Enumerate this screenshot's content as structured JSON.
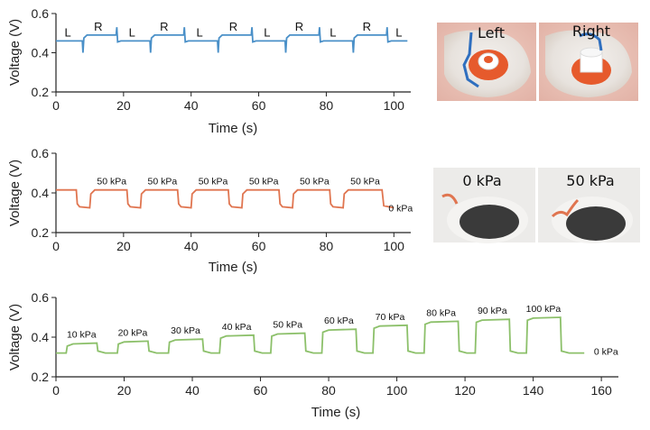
{
  "chart_data": [
    {
      "type": "line",
      "title": "",
      "color": "#4a90c8",
      "xlabel": "Time (s)",
      "ylabel": "Voltage (V)",
      "xlim": [
        0,
        105
      ],
      "ylim": [
        0.2,
        0.6
      ],
      "xticks": [
        0,
        20,
        40,
        60,
        80,
        100
      ],
      "yticks": [
        0.2,
        0.4,
        0.6
      ],
      "pattern": {
        "period": 20,
        "first_switch": 8,
        "half": 10,
        "low": 0.46,
        "high": 0.49
      },
      "annotations": [
        {
          "text": "L",
          "x": 3.5
        },
        {
          "text": "R",
          "x": 12.5
        },
        {
          "text": "L",
          "x": 22.5
        },
        {
          "text": "R",
          "x": 32
        },
        {
          "text": "L",
          "x": 42.5
        },
        {
          "text": "R",
          "x": 52.5
        },
        {
          "text": "L",
          "x": 62.5
        },
        {
          "text": "R",
          "x": 72
        },
        {
          "text": "L",
          "x": 82
        },
        {
          "text": "R",
          "x": 92
        },
        {
          "text": "L",
          "x": 101.5
        }
      ],
      "photos": [
        {
          "label": "Left"
        },
        {
          "label": "Right"
        }
      ]
    },
    {
      "type": "line",
      "title": "",
      "color": "#e07550",
      "xlabel": "Time (s)",
      "ylabel": "Voltage (V)",
      "xlim": [
        0,
        105
      ],
      "ylim": [
        0.2,
        0.6
      ],
      "xticks": [
        0,
        20,
        40,
        60,
        80,
        100
      ],
      "yticks": [
        0.2,
        0.4,
        0.6
      ],
      "pattern": {
        "start_low": 6,
        "period": 15,
        "low_dur": 4,
        "high": 0.415,
        "low": 0.325,
        "end": 97
      },
      "annotations": [
        {
          "text": "50 kPa",
          "x": 16.5
        },
        {
          "text": "50 kPa",
          "x": 31.5
        },
        {
          "text": "50 kPa",
          "x": 46.5
        },
        {
          "text": "50 kPa",
          "x": 61.5
        },
        {
          "text": "50 kPa",
          "x": 76.5
        },
        {
          "text": "50 kPa",
          "x": 91.5
        },
        {
          "text": "0 kPa",
          "x": 102
        }
      ],
      "photos": [
        {
          "label": "0 kPa"
        },
        {
          "label": "50 kPa"
        }
      ]
    },
    {
      "type": "line",
      "title": "",
      "color": "#8cc06a",
      "xlabel": "Time (s)",
      "ylabel": "Voltage (V)",
      "xlim": [
        0,
        165
      ],
      "ylim": [
        0.2,
        0.6
      ],
      "xticks": [
        0,
        20,
        40,
        60,
        80,
        100,
        120,
        140,
        160
      ],
      "yticks": [
        0.2,
        0.4,
        0.6
      ],
      "base": 0.32,
      "steps": [
        {
          "label": "10 kPa",
          "start": 3,
          "end": 12,
          "value": 0.37
        },
        {
          "label": "20 kPa",
          "start": 18,
          "end": 27,
          "value": 0.38
        },
        {
          "label": "30 kPa",
          "start": 33,
          "end": 43,
          "value": 0.39
        },
        {
          "label": "40 kPa",
          "start": 48,
          "end": 58,
          "value": 0.41
        },
        {
          "label": "50 kPa",
          "start": 63,
          "end": 73,
          "value": 0.42
        },
        {
          "label": "60 kPa",
          "start": 78,
          "end": 88,
          "value": 0.44
        },
        {
          "label": "70 kPa",
          "start": 93,
          "end": 103,
          "value": 0.46
        },
        {
          "label": "80 kPa",
          "start": 108,
          "end": 118,
          "value": 0.48
        },
        {
          "label": "90 kPa",
          "start": 123,
          "end": 133,
          "value": 0.49
        },
        {
          "label": "100 kPa",
          "start": 138,
          "end": 148,
          "value": 0.5
        }
      ],
      "end": 155,
      "end_label": "0 kPa"
    }
  ]
}
